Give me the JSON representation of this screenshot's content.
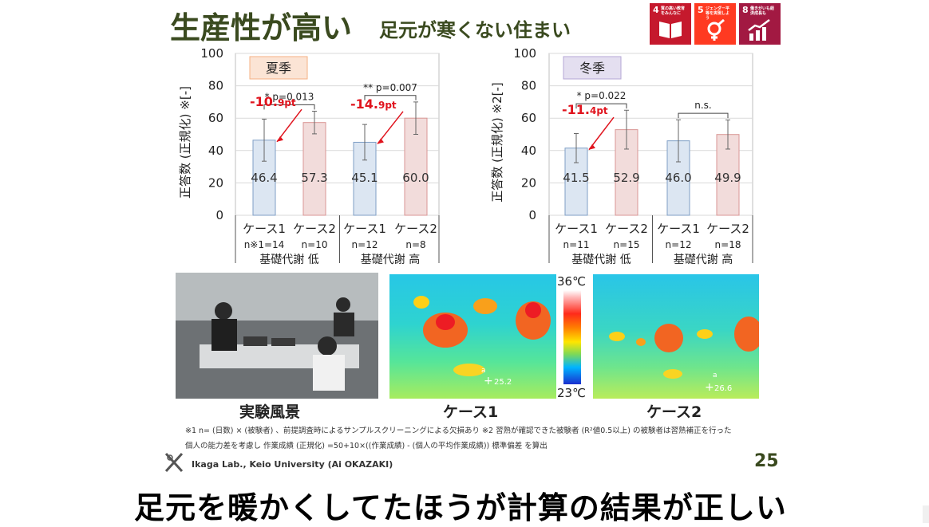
{
  "slide": {
    "title_main": "生産性が高い",
    "title_sub": "足元が寒くない住まい",
    "page_number": "25",
    "lab": "Ikaga Lab., Keio University (Ai OKAZAKI)",
    "footnote_line1": "※1 n= (日数) × (被験者) 、前提調査時によるサンプルスクリーニングによる欠損あり ※2 習熟が確認できた被験者 (R²値0.5以上) の被験者は習熟補正を行った",
    "footnote_line2": "個人の能力差を考慮し 作業成績 (正規化) =50+10×((作業成績) - (個人の平均作業成績)) 標準偏差 を算出",
    "caption": "足元を暖かくしてたほうが計算の結果が正しい"
  },
  "sdgs": [
    {
      "number": "4",
      "text": "質の高い教育をみんなに",
      "color": "#c5192d",
      "icon": "book-icon"
    },
    {
      "number": "5",
      "text": "ジェンダー平等を実現しよう",
      "color": "#ff3a21",
      "icon": "gender-icon"
    },
    {
      "number": "8",
      "text": "働きがいも経済成長も",
      "color": "#a21942",
      "icon": "growth-chart-icon"
    }
  ],
  "chart_data": [
    {
      "type": "bar",
      "title": "夏季",
      "ylabel": "正答数 (正規化) ※[-]",
      "ylim": [
        0,
        100
      ],
      "yticks": [
        "0",
        "20",
        "40",
        "60",
        "80",
        "100"
      ],
      "categories": [
        "ケース1",
        "ケース2",
        "ケース1",
        "ケース2"
      ],
      "n_labels": [
        "n※1=14",
        "n=10",
        "n=12",
        "n=8"
      ],
      "groups": [
        "基礎代謝 低",
        "基礎代謝 高"
      ],
      "values": [
        46.4,
        57.3,
        45.1,
        60.0
      ],
      "value_labels": [
        "46.4",
        "57.3",
        "45.1",
        "60.0"
      ],
      "errors": [
        13,
        7,
        11,
        10
      ],
      "colors": [
        "#dce6f2",
        "#f2dcdb",
        "#dce6f2",
        "#f2dcdb"
      ],
      "significance": [
        "* p=0.013",
        "** p=0.007"
      ],
      "diff_labels": [
        {
          "main": "-10.",
          "sub": "9pt"
        },
        {
          "main": "-14.",
          "sub": "9pt"
        }
      ]
    },
    {
      "type": "bar",
      "title": "冬季",
      "ylabel": "正答数 (正規化) ※2[-]",
      "ylim": [
        0,
        100
      ],
      "yticks": [
        "0",
        "20",
        "40",
        "60",
        "80",
        "100"
      ],
      "categories": [
        "ケース1",
        "ケース2",
        "ケース1",
        "ケース2"
      ],
      "n_labels": [
        "n=11",
        "n=15",
        "n=12",
        "n=18"
      ],
      "groups": [
        "基礎代謝 低",
        "基礎代謝 高"
      ],
      "values": [
        41.5,
        52.9,
        46.0,
        49.9
      ],
      "value_labels": [
        "41.5",
        "52.9",
        "46.0",
        "49.9"
      ],
      "errors": [
        9,
        12,
        13,
        9
      ],
      "colors": [
        "#dce6f2",
        "#f2dcdb",
        "#dce6f2",
        "#f2dcdb"
      ],
      "significance": [
        "* p=0.022",
        "n.s."
      ],
      "diff_labels": [
        {
          "main": "-11.",
          "sub": "4pt"
        }
      ]
    }
  ],
  "photos": {
    "scene_label": "実験風景",
    "case1_label": "ケース1",
    "case2_label": "ケース2",
    "temp_max": "36℃",
    "temp_min": "23℃",
    "case1_point": "a",
    "case1_temp": "25.2",
    "case2_point": "a",
    "case2_temp": "26.6"
  }
}
